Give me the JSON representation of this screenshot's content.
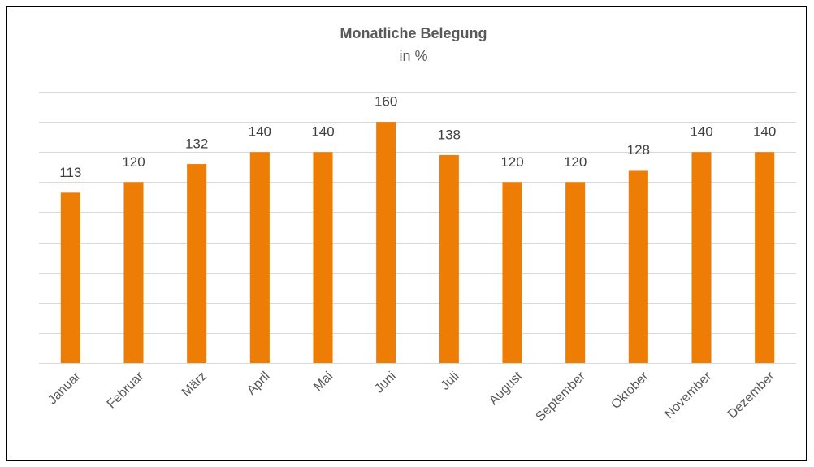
{
  "chart_data": {
    "type": "bar",
    "title": "Monatliche Belegung",
    "subtitle": "in %",
    "categories": [
      "Januar",
      "Februar",
      "März",
      "April",
      "Mai",
      "Juni",
      "Juli",
      "August",
      "September",
      "Oktober",
      "November",
      "Dezember"
    ],
    "values": [
      113,
      120,
      132,
      140,
      140,
      160,
      138,
      120,
      120,
      128,
      140,
      140
    ],
    "color": "#ed7d05",
    "ylim": [
      0,
      180
    ],
    "yticks": [
      0,
      20,
      40,
      60,
      80,
      100,
      120,
      140,
      160,
      180
    ],
    "grid": true
  }
}
